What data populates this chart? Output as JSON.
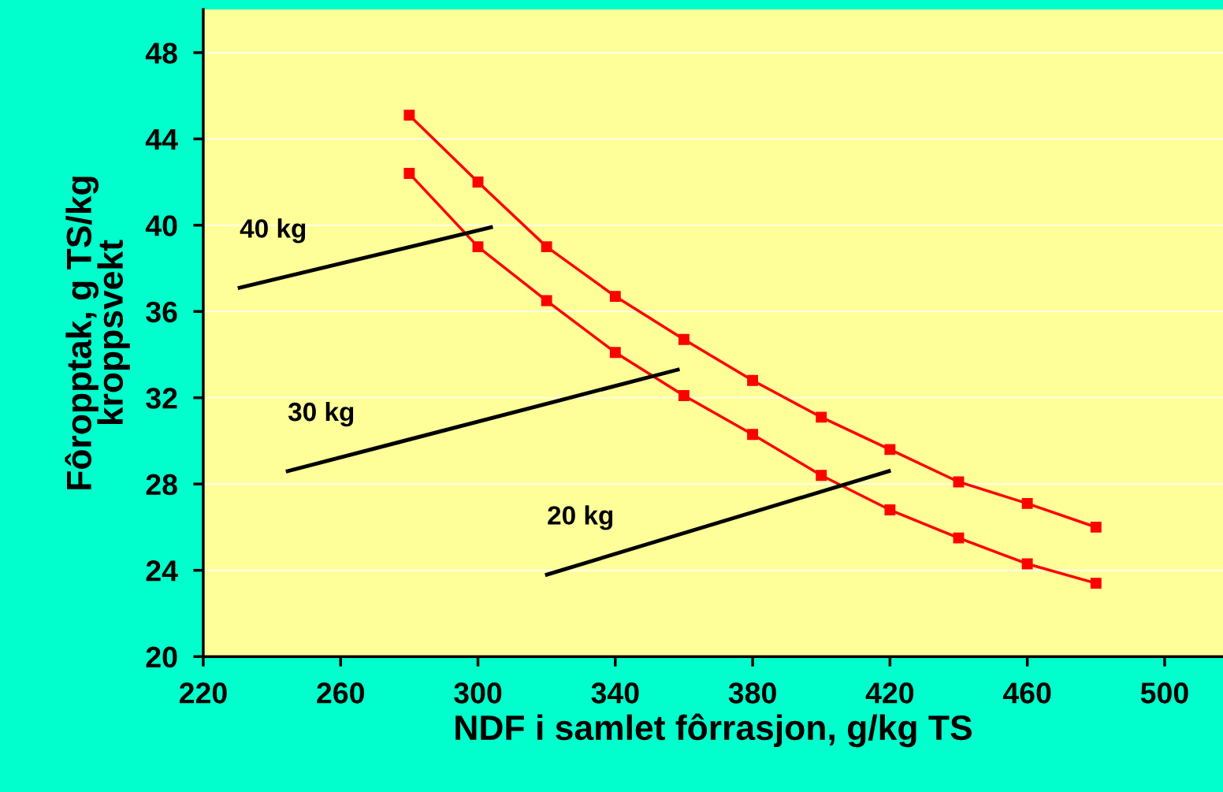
{
  "chart_data": {
    "type": "line",
    "xlabel": "NDF i samlet fôrrasjon, g/kg TS",
    "ylabel": "Fôropptak, g TS/kg\nkroppsvekt",
    "x": [
      280,
      300,
      320,
      340,
      360,
      380,
      400,
      420,
      440,
      460,
      480
    ],
    "marker": "square",
    "series": [
      {
        "color": "#ff0000",
        "values": [
          45.1,
          42.0,
          39.0,
          36.7,
          34.7,
          32.8,
          31.1,
          29.6,
          28.1,
          27.1,
          26.0
        ]
      },
      {
        "color": "#ff0000",
        "values": [
          42.4,
          39.0,
          36.5,
          34.1,
          32.1,
          30.3,
          28.4,
          26.8,
          25.5,
          24.3,
          23.4
        ]
      },
      {
        "name": "40 kg",
        "color": "#000000",
        "marker": "none",
        "x": [
          230.6,
          303.8
        ],
        "values": [
          37.1,
          39.9
        ]
      },
      {
        "name": "30 kg",
        "color": "#000000",
        "marker": "none",
        "x": [
          244.6,
          358.2
        ],
        "values": [
          28.6,
          33.3
        ]
      },
      {
        "name": "20 kg",
        "color": "#000000",
        "marker": "none",
        "x": [
          320.1,
          419.7
        ],
        "values": [
          23.8,
          28.6
        ]
      }
    ],
    "xlim": [
      220,
      517
    ],
    "ylim": [
      20,
      50
    ],
    "xticks": [
      220,
      260,
      300,
      340,
      380,
      420,
      460,
      500
    ],
    "yticks": [
      20,
      24,
      28,
      32,
      36,
      40,
      44,
      48
    ],
    "grid": "y",
    "line_style": "solid"
  }
}
